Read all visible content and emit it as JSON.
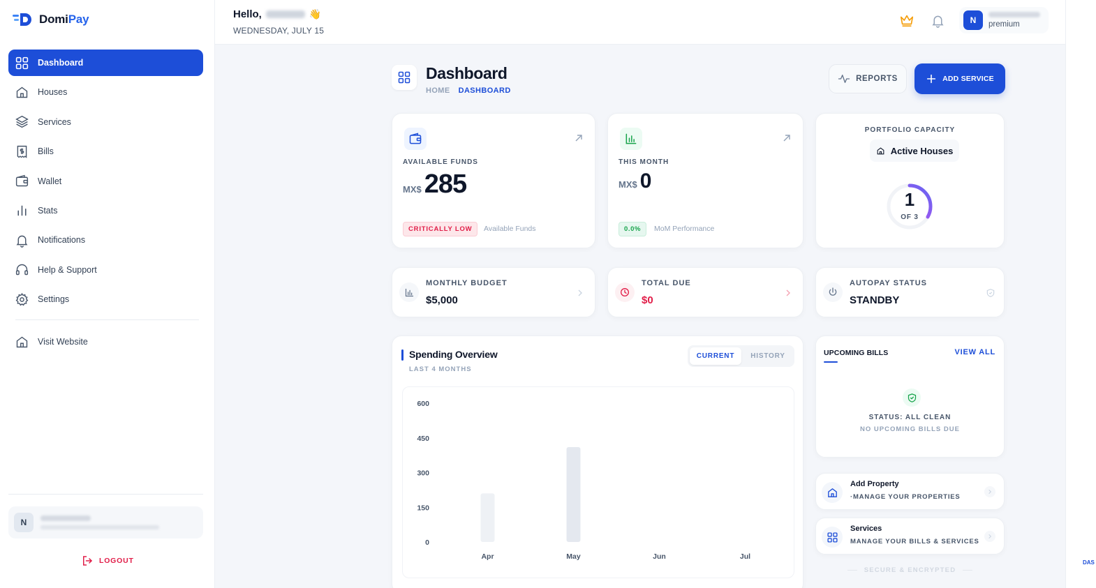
{
  "brand": {
    "name_a": "Domi",
    "name_b": "Pay",
    "accent": "#1d4ed8"
  },
  "sidebar": {
    "items": [
      {
        "label": "Dashboard",
        "icon": "grid-icon",
        "active": true
      },
      {
        "label": "Houses",
        "icon": "house-icon"
      },
      {
        "label": "Services",
        "icon": "layers-icon"
      },
      {
        "label": "Bills",
        "icon": "bill-icon"
      },
      {
        "label": "Wallet",
        "icon": "wallet-icon"
      },
      {
        "label": "Stats",
        "icon": "stats-icon"
      },
      {
        "label": "Notifications",
        "icon": "bell-icon"
      },
      {
        "label": "Help & Support",
        "icon": "headset-icon"
      },
      {
        "label": "Settings",
        "icon": "gear-icon"
      }
    ],
    "visit": {
      "label": "Visit Website",
      "icon": "house-icon"
    },
    "user_initial": "N",
    "logout": "LOGOUT"
  },
  "topbar": {
    "hello": "Hello,",
    "wave": "👋",
    "date": "WEDNESDAY, JULY 15",
    "avatar_initial": "N",
    "plan": "premium"
  },
  "header": {
    "title": "Dashboard",
    "crumb_home": "HOME",
    "crumb_current": "DASHBOARD",
    "reports": "REPORTS",
    "add_service": "ADD SERVICE"
  },
  "funds": {
    "label": "AVAILABLE FUNDS",
    "currency": "MX$",
    "amount": "285",
    "badge": "CRITICALLY LOW",
    "note": "Available Funds"
  },
  "month": {
    "label": "THIS MONTH",
    "currency": "MX$",
    "amount": "0",
    "badge": "0.0%",
    "note": "MoM Performance"
  },
  "portfolio": {
    "label": "PORTFOLIO CAPACITY",
    "pill": "Active Houses",
    "value": "1",
    "of": "OF 3",
    "fraction": 0.333
  },
  "budget": {
    "label": "MONTHLY BUDGET",
    "value": "$5,000"
  },
  "due": {
    "label": "TOTAL DUE",
    "value": "$0",
    "color": "#e11d48"
  },
  "autopay": {
    "label": "AUTOPAY STATUS",
    "value": "STANDBY"
  },
  "spending": {
    "title": "Spending Overview",
    "subtitle": "LAST 4 MONTHS",
    "tab_current": "CURRENT",
    "tab_history": "HISTORY"
  },
  "chart_data": {
    "type": "bar",
    "categories": [
      "Apr",
      "May",
      "Jun",
      "Jul"
    ],
    "values": [
      210,
      410,
      0,
      0
    ],
    "yticks": [
      "600",
      "450",
      "300",
      "150",
      "0"
    ],
    "ylim": [
      0,
      600
    ],
    "title": "",
    "xlabel": "",
    "ylabel": ""
  },
  "bills": {
    "title": "UPCOMING BILLS",
    "view_all": "VIEW ALL",
    "status": "STATUS: ALL CLEAN",
    "none": "NO UPCOMING BILLS DUE"
  },
  "links": [
    {
      "title": "Add Property",
      "subtitle": "·MANAGE YOUR PROPERTIES",
      "icon": "house-icon"
    },
    {
      "title": "Services",
      "subtitle": "MANAGE YOUR BILLS & SERVICES",
      "icon": "grid-icon"
    }
  ],
  "footer": {
    "secure": "SECURE & ENCRYPTED"
  },
  "edge_label": "DAS"
}
